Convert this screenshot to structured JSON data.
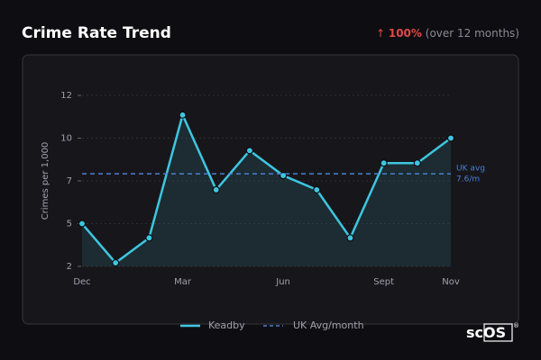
{
  "chart_data": {
    "type": "line",
    "title": "Crime Rate Trend",
    "change": {
      "arrow": "↑",
      "value": "100%",
      "note": "(over 12 months)"
    },
    "ylabel": "Crimes per 1,000",
    "categories": [
      "Dec",
      null,
      null,
      "Mar",
      null,
      null,
      "Jun",
      null,
      null,
      "Sept",
      null,
      "Nov"
    ],
    "series": [
      {
        "name": "Keadby",
        "color": "#3ec6e0",
        "values": [
          4.8,
          2.6,
          4.0,
          10.9,
          6.7,
          8.9,
          7.5,
          6.7,
          4.0,
          8.2,
          8.2,
          9.6
        ]
      }
    ],
    "reference": {
      "name": "UK Avg/month",
      "value": 7.6,
      "color": "#4a7fd4",
      "label": [
        "UK avg",
        "7.6/m"
      ]
    },
    "ylim": [
      2.4,
      12
    ],
    "yticks": [
      {
        "value": 2.4,
        "label": "2"
      },
      {
        "value": 4.8,
        "label": "5"
      },
      {
        "value": 7.2,
        "label": "7"
      },
      {
        "value": 9.6,
        "label": "10"
      },
      {
        "value": 12,
        "label": "12"
      }
    ],
    "grid": true,
    "logo": {
      "a": "sc",
      "b": "OS",
      "mark": "®"
    }
  }
}
